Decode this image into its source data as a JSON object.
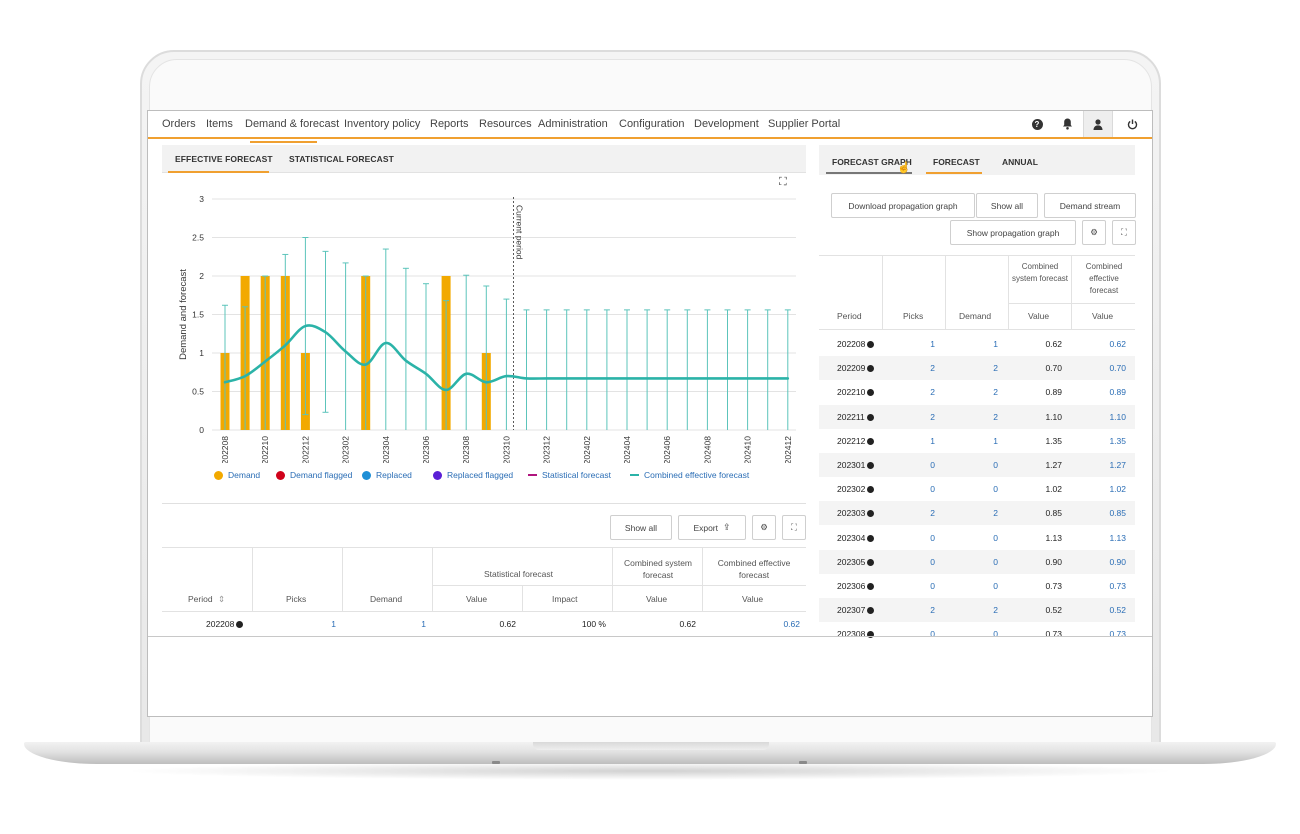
{
  "nav": {
    "items": [
      "Orders",
      "Items",
      "Demand & forecast",
      "Inventory policy",
      "Reports",
      "Resources",
      "Administration",
      "Configuration",
      "Development",
      "Supplier Portal"
    ],
    "icons": [
      "help-icon",
      "bell-icon",
      "user-icon",
      "power-icon"
    ]
  },
  "left_tabs": {
    "effective": "EFFECTIVE FORECAST",
    "statistical": "STATISTICAL FORECAST"
  },
  "chart_data": {
    "type": "bar",
    "ylabel": "Demand and forecast",
    "ylim": [
      0,
      3
    ],
    "yticks": [
      "0",
      "0.5",
      "1",
      "1.5",
      "2",
      "2.5",
      "3"
    ],
    "current_period_label": "Current period",
    "categories": [
      "202208",
      "202209",
      "202210",
      "202211",
      "202212",
      "202301",
      "202302",
      "202303",
      "202304",
      "202305",
      "202306",
      "202307",
      "202308",
      "202309",
      "202310",
      "202311",
      "202312",
      "202401",
      "202402",
      "202403",
      "202404",
      "202405",
      "202406",
      "202407",
      "202408",
      "202409",
      "202410",
      "202411",
      "202412"
    ],
    "xtick_labels": [
      "202208",
      "202210",
      "202212",
      "202302",
      "202304",
      "202306",
      "202308",
      "202310",
      "202312",
      "202402",
      "202404",
      "202406",
      "202408",
      "202410",
      "202412"
    ],
    "series": [
      {
        "name": "Demand",
        "color": "#f2a900",
        "values": [
          1,
          2,
          2,
          2,
          1,
          0,
          0,
          2,
          0,
          0,
          0,
          2,
          0,
          1,
          0,
          null,
          null,
          null,
          null,
          null,
          null,
          null,
          null,
          null,
          null,
          null,
          null,
          null,
          null
        ]
      },
      {
        "name": "Combined effective forecast",
        "color": "#2bb3a8",
        "values": [
          0.62,
          0.7,
          0.89,
          1.1,
          1.35,
          1.27,
          1.02,
          0.85,
          1.13,
          0.9,
          0.73,
          0.52,
          0.73,
          0.62,
          0.7,
          0.67,
          0.67,
          0.67,
          0.67,
          0.67,
          0.67,
          0.67,
          0.67,
          0.67,
          0.67,
          0.67,
          0.67,
          0.67,
          0.67
        ]
      }
    ],
    "interval_upper": [
      1.62,
      1.6,
      2.0,
      2.28,
      2.5,
      2.32,
      2.17,
      2.0,
      2.35,
      2.1,
      1.9,
      1.68,
      2.01,
      1.87,
      1.7,
      1.56,
      1.56,
      1.56,
      1.56,
      1.56,
      1.56,
      1.56,
      1.56,
      1.56,
      1.56,
      1.56,
      1.56,
      1.56,
      1.56
    ],
    "interval_lower": [
      0,
      0,
      0,
      0,
      0.2,
      0.23,
      0,
      0,
      0,
      0,
      0,
      0,
      0,
      0,
      0,
      0,
      0,
      0,
      0,
      0,
      0,
      0,
      0,
      0,
      0,
      0,
      0,
      0,
      0
    ],
    "legend": [
      {
        "label": "Demand",
        "color": "#f2a900",
        "kind": "dot"
      },
      {
        "label": "Demand flagged",
        "color": "#d0021b",
        "kind": "dot"
      },
      {
        "label": "Replaced",
        "color": "#1f8fd6",
        "kind": "dot"
      },
      {
        "label": "Replaced flagged",
        "color": "#5b1fd6",
        "kind": "dot"
      },
      {
        "label": "Statistical forecast",
        "color": "#b0157e",
        "kind": "line"
      },
      {
        "label": "Combined effective forecast",
        "color": "#2bb3a8",
        "kind": "line"
      }
    ]
  },
  "left_buttons": {
    "show_all": "Show all",
    "export": "Export"
  },
  "left_table": {
    "group_stat": "Statistical forecast",
    "group_css": "Combined system forecast",
    "group_cef": "Combined effective forecast",
    "headers": [
      "Period",
      "Picks",
      "Demand",
      "Value",
      "Impact",
      "Value",
      "Value"
    ],
    "sort_glyph": "⇕",
    "rows": [
      {
        "period": "202208",
        "picks": "1",
        "demand": "1",
        "stat_value": "0.62",
        "impact": "100 %",
        "css_value": "0.62",
        "cef_value": "0.62"
      }
    ]
  },
  "right_tabs": {
    "graph": "FORECAST GRAPH",
    "forecast": "FORECAST",
    "annual": "ANNUAL"
  },
  "right_buttons": {
    "download": "Download propagation graph",
    "show_all": "Show all",
    "demand_stream": "Demand stream",
    "show_prop": "Show propagation graph"
  },
  "right_table": {
    "group_css": "Combined system forecast",
    "group_cef": "Combined effective forecast",
    "headers": [
      "Period",
      "Picks",
      "Demand",
      "Value",
      "Value"
    ],
    "rows": [
      {
        "period": "202208",
        "picks": "1",
        "demand": "1",
        "css": "0.62",
        "cef": "0.62"
      },
      {
        "period": "202209",
        "picks": "2",
        "demand": "2",
        "css": "0.70",
        "cef": "0.70"
      },
      {
        "period": "202210",
        "picks": "2",
        "demand": "2",
        "css": "0.89",
        "cef": "0.89"
      },
      {
        "period": "202211",
        "picks": "2",
        "demand": "2",
        "css": "1.10",
        "cef": "1.10"
      },
      {
        "period": "202212",
        "picks": "1",
        "demand": "1",
        "css": "1.35",
        "cef": "1.35"
      },
      {
        "period": "202301",
        "picks": "0",
        "demand": "0",
        "css": "1.27",
        "cef": "1.27"
      },
      {
        "period": "202302",
        "picks": "0",
        "demand": "0",
        "css": "1.02",
        "cef": "1.02"
      },
      {
        "period": "202303",
        "picks": "2",
        "demand": "2",
        "css": "0.85",
        "cef": "0.85"
      },
      {
        "period": "202304",
        "picks": "0",
        "demand": "0",
        "css": "1.13",
        "cef": "1.13"
      },
      {
        "period": "202305",
        "picks": "0",
        "demand": "0",
        "css": "0.90",
        "cef": "0.90"
      },
      {
        "period": "202306",
        "picks": "0",
        "demand": "0",
        "css": "0.73",
        "cef": "0.73"
      },
      {
        "period": "202307",
        "picks": "2",
        "demand": "2",
        "css": "0.52",
        "cef": "0.52"
      },
      {
        "period": "202308",
        "picks": "0",
        "demand": "0",
        "css": "0.73",
        "cef": "0.73"
      }
    ]
  }
}
